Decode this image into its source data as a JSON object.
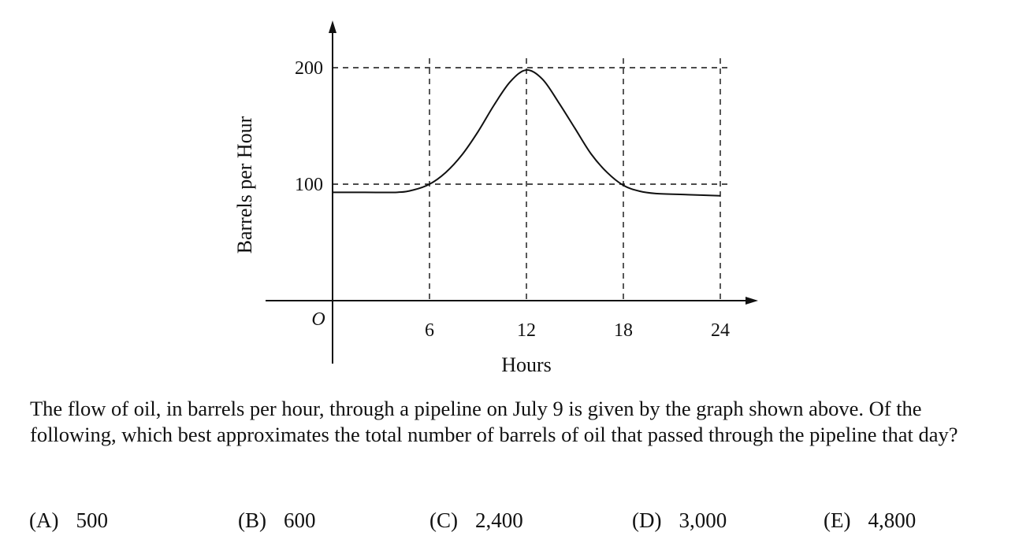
{
  "chart_data": {
    "type": "line",
    "xlabel": "Hours",
    "ylabel": "Barrels per Hour",
    "origin_label": "O",
    "xlim": [
      0,
      26
    ],
    "ylim": [
      0,
      225
    ],
    "x_ticks": [
      6,
      12,
      18,
      24
    ],
    "y_ticks": [
      100,
      200
    ],
    "grid": "dashed reference lines at x = 6, 12, 18, 24 and y = 100, 200",
    "series": [
      {
        "x": [
          0,
          2,
          4,
          5,
          6,
          7,
          8,
          9,
          10,
          11,
          12,
          13,
          14,
          15,
          16,
          17,
          18,
          19,
          20,
          22,
          24
        ],
        "y": [
          93,
          93,
          93,
          95,
          100,
          110,
          125,
          145,
          168,
          188,
          198,
          190,
          170,
          148,
          126,
          110,
          99,
          94,
          92,
          91,
          90
        ]
      }
    ]
  },
  "question": {
    "text": "The flow of oil, in barrels per hour, through a pipeline on July 9 is given by the graph shown above. Of the following, which best approximates the total number of barrels of oil that passed through the pipeline that day?",
    "choices": [
      {
        "letter": "(A)",
        "value": "500"
      },
      {
        "letter": "(B)",
        "value": "600"
      },
      {
        "letter": "(C)",
        "value": "2,400"
      },
      {
        "letter": "(D)",
        "value": "3,000"
      },
      {
        "letter": "(E)",
        "value": "4,800"
      }
    ]
  }
}
